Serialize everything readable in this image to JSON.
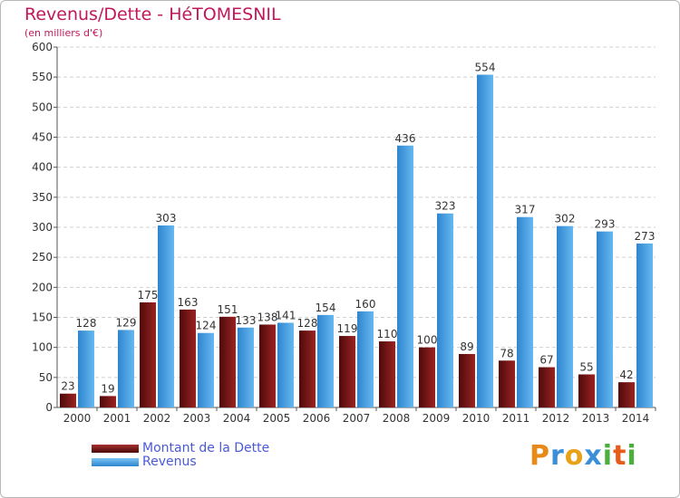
{
  "chart_data": {
    "type": "bar",
    "title": "Revenus/Dette - HéTOMESNIL",
    "subtitle": "(en milliers d'€)",
    "categories": [
      "2000",
      "2001",
      "2002",
      "2003",
      "2004",
      "2005",
      "2006",
      "2007",
      "2008",
      "2009",
      "2010",
      "2011",
      "2012",
      "2013",
      "2014"
    ],
    "series": [
      {
        "name": "Montant de la Dette",
        "color": "#8b1a1a",
        "values": [
          23,
          19,
          175,
          163,
          151,
          138,
          128,
          119,
          110,
          100,
          89,
          78,
          67,
          55,
          42
        ]
      },
      {
        "name": "Revenus",
        "color": "#4aa3e8",
        "values": [
          128,
          129,
          303,
          124,
          133,
          141,
          154,
          160,
          436,
          323,
          554,
          317,
          302,
          293,
          273
        ]
      }
    ],
    "ylim": [
      0,
      600
    ],
    "yticks": [
      0,
      50,
      100,
      150,
      200,
      250,
      300,
      350,
      400,
      450,
      500,
      550,
      600
    ],
    "grid": true,
    "legend": "bottom-left"
  },
  "logo": {
    "letters": [
      "P",
      "r",
      "o",
      "x",
      "i",
      "t",
      "i"
    ],
    "colors": [
      "#e88a1a",
      "#3a8fd8",
      "#e8a21a",
      "#3a8fd8",
      "#4cae3c",
      "#e85c1a",
      "#4cae3c"
    ]
  }
}
